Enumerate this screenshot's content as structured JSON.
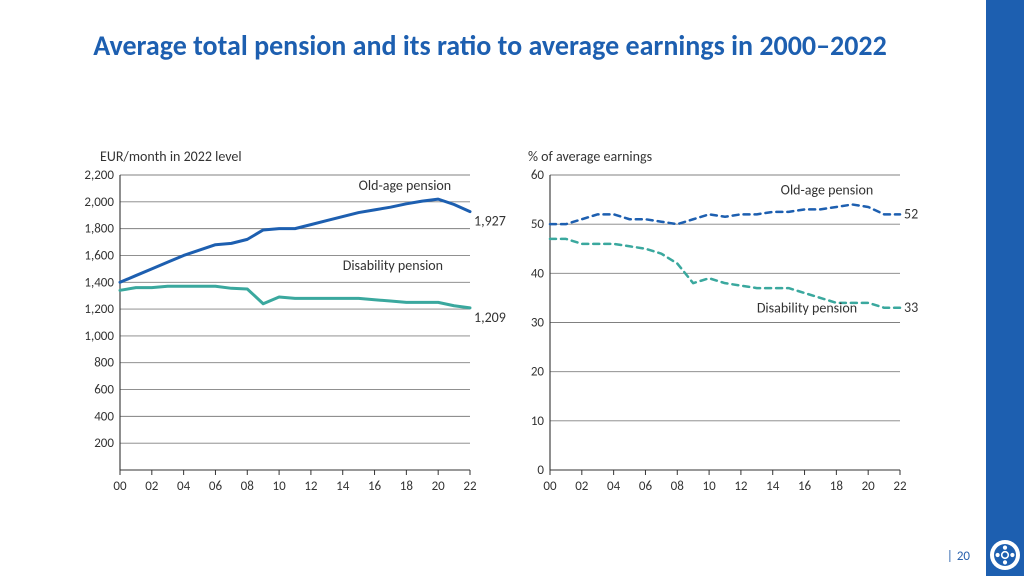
{
  "title": "Average total pension and its ratio to average earnings in 2000–2022",
  "title_color": "#1d5fb0",
  "title_fontsize": 28,
  "sidebar_color": "#1d5fb0",
  "page_number": "20",
  "logo_bg": "#1d5fb0",
  "logo_fg": "#ffffff",
  "left_chart": {
    "type": "line",
    "subtitle": "EUR/month in 2022 level",
    "subtitle_fontsize": 14,
    "subtitle_color": "#333333",
    "x": {
      "min": 0,
      "max": 22,
      "ticks": [
        0,
        2,
        4,
        6,
        8,
        10,
        12,
        14,
        16,
        18,
        20,
        22
      ],
      "tick_labels": [
        "00",
        "02",
        "04",
        "06",
        "08",
        "10",
        "12",
        "14",
        "16",
        "18",
        "20",
        "22"
      ]
    },
    "y": {
      "min": 0,
      "max": 2200,
      "ticks": [
        200,
        400,
        600,
        800,
        1000,
        1200,
        1400,
        1600,
        1800,
        2000,
        2200
      ]
    },
    "grid_color": "#808080",
    "axis_color": "#333333",
    "tick_fontsize": 13,
    "series": [
      {
        "name": "Old-age pension",
        "color": "#1d5fb0",
        "dash": "none",
        "width": 3,
        "end_label": "1,927",
        "label_pos": {
          "x": 15,
          "y": 2090
        },
        "values": [
          [
            0,
            1400
          ],
          [
            1,
            1450
          ],
          [
            2,
            1500
          ],
          [
            3,
            1550
          ],
          [
            4,
            1600
          ],
          [
            5,
            1640
          ],
          [
            6,
            1680
          ],
          [
            7,
            1690
          ],
          [
            8,
            1720
          ],
          [
            9,
            1790
          ],
          [
            10,
            1800
          ],
          [
            11,
            1800
          ],
          [
            12,
            1830
          ],
          [
            13,
            1860
          ],
          [
            14,
            1890
          ],
          [
            15,
            1920
          ],
          [
            16,
            1940
          ],
          [
            17,
            1960
          ],
          [
            18,
            1985
          ],
          [
            19,
            2005
          ],
          [
            20,
            2020
          ],
          [
            21,
            1980
          ],
          [
            22,
            1927
          ]
        ]
      },
      {
        "name": "Disability pension",
        "color": "#3aa89e",
        "dash": "none",
        "width": 3,
        "end_label": "1,209",
        "label_pos": {
          "x": 14,
          "y": 1490
        },
        "values": [
          [
            0,
            1340
          ],
          [
            1,
            1360
          ],
          [
            2,
            1360
          ],
          [
            3,
            1370
          ],
          [
            4,
            1370
          ],
          [
            5,
            1370
          ],
          [
            6,
            1370
          ],
          [
            7,
            1355
          ],
          [
            8,
            1350
          ],
          [
            9,
            1240
          ],
          [
            10,
            1290
          ],
          [
            11,
            1280
          ],
          [
            12,
            1280
          ],
          [
            13,
            1280
          ],
          [
            14,
            1280
          ],
          [
            15,
            1280
          ],
          [
            16,
            1270
          ],
          [
            17,
            1260
          ],
          [
            18,
            1250
          ],
          [
            19,
            1250
          ],
          [
            20,
            1250
          ],
          [
            21,
            1225
          ],
          [
            22,
            1209
          ]
        ]
      }
    ]
  },
  "right_chart": {
    "type": "line",
    "subtitle": "% of average earnings",
    "subtitle_fontsize": 14,
    "subtitle_color": "#333333",
    "x": {
      "min": 0,
      "max": 22,
      "ticks": [
        0,
        2,
        4,
        6,
        8,
        10,
        12,
        14,
        16,
        18,
        20,
        22
      ],
      "tick_labels": [
        "00",
        "02",
        "04",
        "06",
        "08",
        "10",
        "12",
        "14",
        "16",
        "18",
        "20",
        "22"
      ]
    },
    "y": {
      "min": 0,
      "max": 60,
      "ticks": [
        0,
        10,
        20,
        30,
        40,
        50,
        60
      ]
    },
    "grid_color": "#808080",
    "axis_color": "#333333",
    "tick_fontsize": 13,
    "series": [
      {
        "name": "Old-age pension",
        "color": "#1d5fb0",
        "dash": "6,5",
        "width": 2.5,
        "end_label": "52",
        "label_pos": {
          "x": 14.5,
          "y": 56
        },
        "values": [
          [
            0,
            50
          ],
          [
            1,
            50
          ],
          [
            2,
            51
          ],
          [
            3,
            52
          ],
          [
            4,
            52
          ],
          [
            5,
            51
          ],
          [
            6,
            51
          ],
          [
            7,
            50.5
          ],
          [
            8,
            50
          ],
          [
            9,
            51
          ],
          [
            10,
            52
          ],
          [
            11,
            51.5
          ],
          [
            12,
            52
          ],
          [
            13,
            52
          ],
          [
            14,
            52.5
          ],
          [
            15,
            52.5
          ],
          [
            16,
            53
          ],
          [
            17,
            53
          ],
          [
            18,
            53.5
          ],
          [
            19,
            54
          ],
          [
            20,
            53.5
          ],
          [
            21,
            52
          ],
          [
            22,
            52
          ]
        ]
      },
      {
        "name": "Disability pension",
        "color": "#3aa89e",
        "dash": "6,5",
        "width": 2.5,
        "end_label": "33",
        "label_pos": {
          "x": 13,
          "y": 32
        },
        "values": [
          [
            0,
            47
          ],
          [
            1,
            47
          ],
          [
            2,
            46
          ],
          [
            3,
            46
          ],
          [
            4,
            46
          ],
          [
            5,
            45.5
          ],
          [
            6,
            45
          ],
          [
            7,
            44
          ],
          [
            8,
            42
          ],
          [
            9,
            38
          ],
          [
            10,
            39
          ],
          [
            11,
            38
          ],
          [
            12,
            37.5
          ],
          [
            13,
            37
          ],
          [
            14,
            37
          ],
          [
            15,
            37
          ],
          [
            16,
            36
          ],
          [
            17,
            35
          ],
          [
            18,
            34
          ],
          [
            19,
            34
          ],
          [
            20,
            34
          ],
          [
            21,
            33
          ],
          [
            22,
            33
          ]
        ]
      }
    ]
  }
}
